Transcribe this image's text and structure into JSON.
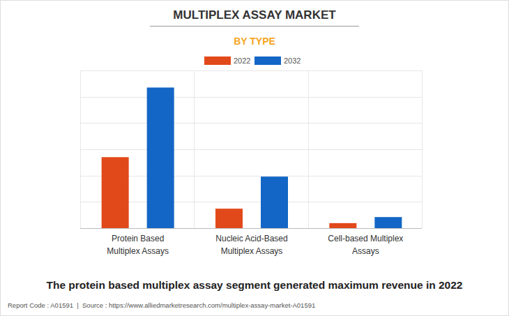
{
  "chart_data": {
    "type": "bar",
    "title": "MULTIPLEX ASSAY MARKET",
    "subtitle": "BY TYPE",
    "categories": [
      "Protein Based\nMultiplex Assays",
      "Nucleic Acid-Based\nMultiplex Assays",
      "Cell-based Multiplex\nAssays"
    ],
    "series": [
      {
        "name": "2022",
        "color": "#e2491a",
        "values": [
          2.7,
          0.74,
          0.19
        ]
      },
      {
        "name": "2032",
        "color": "#1366c6",
        "values": [
          5.35,
          1.96,
          0.42
        ]
      }
    ],
    "ylim": [
      0,
      6
    ],
    "yticks": [
      0,
      1,
      2,
      3,
      4,
      5,
      6
    ],
    "grid": true,
    "tick_labels": "x",
    "legend": "top",
    "annotations": [
      "The protein based multiplex assay segment generated maximum revenue in 2022",
      "Report Code : A01591  |  Source : https://www.alliedmarketresearch.com/multiplex-assay-market-A01591"
    ]
  }
}
